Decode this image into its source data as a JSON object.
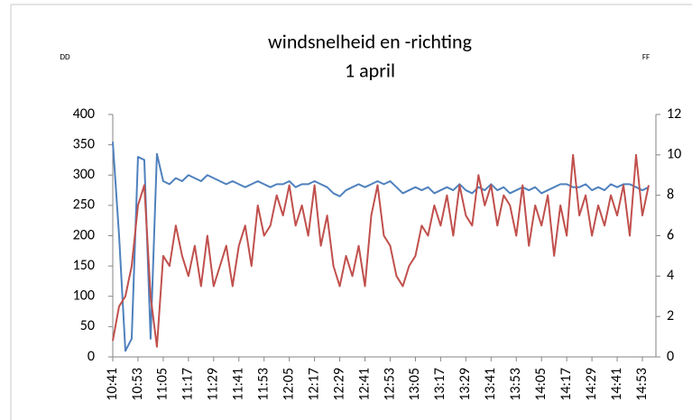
{
  "chart_data": {
    "type": "line",
    "title": "windsnelheid en -richting",
    "subtitle": "1 april",
    "y_label": "DD",
    "y2_label": "FF",
    "categories": [
      "10:41",
      null,
      null,
      null,
      "10:53",
      null,
      null,
      null,
      "11:05",
      null,
      null,
      null,
      "11:17",
      null,
      null,
      null,
      "11:29",
      null,
      null,
      null,
      "11:41",
      null,
      null,
      null,
      "11:53",
      null,
      null,
      null,
      "12:05",
      null,
      null,
      null,
      "12:17",
      null,
      null,
      null,
      "12:29",
      null,
      null,
      null,
      "12:41",
      null,
      null,
      null,
      "12:53",
      null,
      null,
      null,
      "13:05",
      null,
      null,
      null,
      "13:17",
      null,
      null,
      null,
      "13:29",
      null,
      null,
      null,
      "13:41",
      null,
      null,
      null,
      "13:53",
      null,
      null,
      null,
      "14:05",
      null,
      null,
      null,
      "14:17",
      null,
      null,
      null,
      "14:29",
      null,
      null,
      null,
      "14:41",
      null,
      null,
      null,
      "14:53",
      null
    ],
    "series": [
      {
        "name": "DD",
        "color": "#4f81bd",
        "axis": "y",
        "values": [
          355,
          200,
          10,
          30,
          330,
          325,
          30,
          335,
          290,
          285,
          295,
          290,
          300,
          295,
          290,
          300,
          295,
          290,
          285,
          290,
          285,
          280,
          285,
          290,
          285,
          280,
          285,
          285,
          290,
          280,
          285,
          285,
          290,
          285,
          280,
          270,
          265,
          275,
          280,
          285,
          280,
          285,
          290,
          285,
          290,
          280,
          270,
          275,
          280,
          275,
          280,
          270,
          275,
          280,
          275,
          285,
          275,
          270,
          280,
          275,
          285,
          275,
          280,
          270,
          275,
          280,
          275,
          280,
          270,
          275,
          280,
          285,
          285,
          280,
          280,
          285,
          275,
          280,
          275,
          285,
          280,
          285,
          285,
          280,
          275,
          280
        ]
      },
      {
        "name": "FF",
        "color": "#c0504d",
        "axis": "y2",
        "values": [
          0.8,
          2.5,
          3.0,
          4.5,
          7.5,
          8.5,
          3.0,
          0.5,
          5.0,
          4.5,
          6.5,
          5.0,
          4.0,
          5.5,
          3.5,
          6.0,
          3.5,
          4.5,
          5.5,
          3.5,
          5.5,
          6.5,
          4.5,
          7.5,
          6.0,
          6.5,
          8.0,
          7.0,
          8.5,
          6.5,
          7.5,
          6.0,
          8.5,
          5.5,
          7.0,
          4.5,
          3.5,
          5.0,
          4.0,
          5.5,
          3.5,
          7.0,
          8.5,
          6.0,
          5.5,
          4.0,
          3.5,
          4.5,
          5.0,
          6.5,
          6.0,
          7.5,
          6.5,
          8.0,
          6.0,
          8.5,
          7.0,
          6.5,
          9.0,
          7.5,
          8.5,
          6.5,
          8.0,
          7.5,
          6.0,
          8.5,
          5.5,
          7.5,
          6.5,
          8.0,
          5.0,
          7.5,
          6.0,
          10.0,
          7.0,
          8.0,
          6.0,
          7.5,
          6.5,
          8.0,
          7.0,
          8.5,
          6.0,
          10.0,
          7.0,
          8.5
        ]
      }
    ],
    "ylim": [
      0,
      400
    ],
    "yticks": [
      0,
      50,
      100,
      150,
      200,
      250,
      300,
      350,
      400
    ],
    "y2lim": [
      0,
      12
    ],
    "y2ticks": [
      0,
      2,
      4,
      6,
      8,
      10,
      12
    ],
    "grid": false
  }
}
